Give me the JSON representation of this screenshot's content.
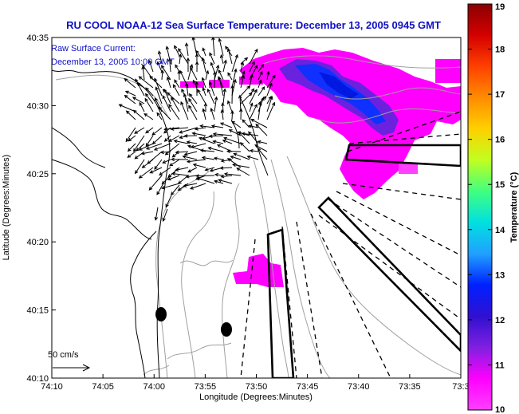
{
  "title": "RU COOL   NOAA-12  Sea Surface Temperature:  December 13, 2005 0945 GMT",
  "annotation": {
    "line1": "Raw Surface Current:",
    "line2": "December 13, 2005 10:00 GMT"
  },
  "scale_label": "50 cm/s",
  "xaxis": {
    "label": "Longitude (Degrees:Minutes)",
    "ticks": [
      "74:10",
      "74:05",
      "74:00",
      "73:55",
      "73:50",
      "73:45",
      "73:40",
      "73:35",
      "73:3"
    ]
  },
  "yaxis": {
    "label": "Latitude (Degrees:Minutes)",
    "ticks": [
      "40:35",
      "40:30",
      "40:25",
      "40:20",
      "40:15",
      "40:10"
    ]
  },
  "colorbar": {
    "label": "Temperature (°C)",
    "ticks": [
      "19",
      "18",
      "17",
      "16",
      "15",
      "14",
      "13",
      "12",
      "11",
      "10"
    ],
    "colors": [
      "#8b0000",
      "#d40000",
      "#ff4000",
      "#ff8c00",
      "#ffd000",
      "#c0ff20",
      "#40ff80",
      "#00e0e0",
      "#20a0ff",
      "#0020ff",
      "#3010d0",
      "#8020e0",
      "#ff00ff",
      "#ff40ff"
    ]
  },
  "colors": {
    "title": "#1010c8",
    "warm_water": "#ff00ff",
    "cool_water": "#1030ff",
    "coast": "#000000",
    "bathymetry": "#a0a0a0"
  },
  "map_features": {
    "coastline": "coast-line",
    "bathymetry_contours": "depth-contours",
    "surface_current_vectors": "current-vectors",
    "radar_sectors": "radar-sectors"
  }
}
